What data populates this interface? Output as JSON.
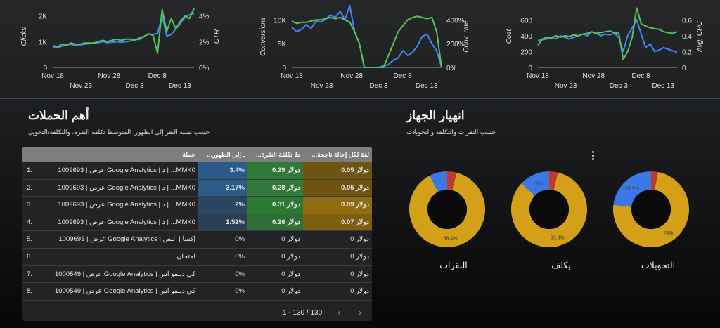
{
  "chart_data": [
    {
      "type": "line",
      "x_ticks_row1": [
        "Nov 18",
        "Nov 28",
        "Dec 8"
      ],
      "x_ticks_row2": [
        "Nov 23",
        "Dec 3",
        "Dec 13"
      ],
      "ylabel": "Clicks",
      "y2label": "CTR",
      "y_ticks": [
        "2K",
        "1K",
        "0"
      ],
      "y2_ticks": [
        "4%",
        "2%",
        "0%"
      ],
      "ylim": [
        0,
        2400
      ],
      "y2lim": [
        0,
        0.048
      ],
      "series": [
        {
          "axis": "left",
          "color": "#4285f4",
          "values": [
            800,
            760,
            820,
            880,
            900,
            860,
            880,
            900,
            920,
            940,
            960,
            1000,
            960,
            980,
            1000,
            980,
            1000,
            1020,
            1100,
            1080,
            1200,
            1300,
            1280,
            1320,
            2000,
            1220,
            1280,
            1500,
            1700,
            1950,
            2050,
            2100
          ]
        },
        {
          "axis": "right",
          "color": "#56c25d",
          "values": [
            0.017,
            0.016,
            0.018,
            0.017,
            0.019,
            0.018,
            0.018,
            0.019,
            0.019,
            0.019,
            0.02,
            0.021,
            0.02,
            0.021,
            0.022,
            0.021,
            0.022,
            0.022,
            0.021,
            0.023,
            0.024,
            0.026,
            0.025,
            0.011,
            0.045,
            0.028,
            0.038,
            0.03,
            0.036,
            0.04,
            0.038,
            0.046
          ]
        }
      ]
    },
    {
      "type": "line",
      "x_ticks_row1": [
        "Nov 18",
        "Nov 28",
        "Dec 8"
      ],
      "x_ticks_row2": [
        "Nov 23",
        "Dec 3",
        "Dec 13"
      ],
      "ylabel": "Conversions",
      "y2label": "Conv. rate",
      "y_ticks": [
        "10K",
        "5K",
        "0"
      ],
      "y2_ticks": [
        "400%",
        "200%",
        "0%"
      ],
      "ylim": [
        0,
        13000
      ],
      "y2lim": [
        0,
        5.2
      ],
      "series": [
        {
          "axis": "left",
          "color": "#4285f4",
          "values": [
            8500,
            7500,
            8000,
            9000,
            8200,
            9800,
            9500,
            10200,
            11000,
            10500,
            11800,
            10000,
            13000,
            7500,
            5000,
            0,
            0,
            0,
            0,
            300,
            600,
            1500,
            2000,
            3500,
            2500,
            3200,
            4500,
            6500,
            7000,
            5000,
            3500,
            0
          ]
        },
        {
          "axis": "right",
          "color": "#56c25d",
          "values": [
            3.9,
            3.7,
            3.8,
            3.8,
            3.9,
            4.0,
            4.0,
            4.1,
            4.2,
            4.1,
            4.2,
            4.0,
            3.8,
            3.0,
            2.0,
            0,
            0,
            0,
            0,
            0,
            1.0,
            2.0,
            3.0,
            3.5,
            4.0,
            4.2,
            4.3,
            4.2,
            4.1,
            4.2,
            3.0,
            0
          ]
        }
      ]
    },
    {
      "type": "line",
      "x_ticks_row1": [
        "Nov 18",
        "Nov 28",
        "Dec 8"
      ],
      "x_ticks_row2": [
        "Nov 23",
        "Dec 3",
        "Dec 13"
      ],
      "ylabel": "Cost",
      "y2label": "Avg. CPC",
      "y_ticks": [
        "600",
        "400",
        "200",
        "0"
      ],
      "y2_ticks": [
        "0.6",
        "0.4",
        "0.2",
        "0"
      ],
      "ylim": [
        0,
        780
      ],
      "y2lim": [
        0,
        0.78
      ],
      "series": [
        {
          "axis": "left",
          "color": "#4285f4",
          "values": [
            340,
            350,
            360,
            380,
            360,
            400,
            380,
            360,
            380,
            400,
            420,
            400,
            450,
            430,
            400,
            420,
            410,
            430,
            380,
            200,
            400,
            500,
            600,
            420,
            250,
            300,
            200,
            220,
            250,
            230,
            210,
            190
          ]
        },
        {
          "axis": "right",
          "color": "#56c25d",
          "values": [
            0.28,
            0.36,
            0.38,
            0.37,
            0.4,
            0.38,
            0.4,
            0.39,
            0.41,
            0.4,
            0.42,
            0.43,
            0.45,
            0.43,
            0.44,
            0.45,
            0.46,
            0.44,
            0.43,
            0.1,
            0.2,
            0.38,
            0.75,
            0.55,
            0.52,
            0.5,
            0.49,
            0.48,
            0.45,
            0.44,
            0.43,
            0.45
          ]
        }
      ]
    },
    {
      "type": "pie",
      "title": "التحويلات",
      "values": [
        74,
        23.1,
        2.9
      ],
      "labels": [
        "74%",
        "23.1%",
        ""
      ],
      "colors": [
        "#d4a017",
        "#3b78e7",
        "#c0392b"
      ]
    },
    {
      "type": "pie",
      "title": "يكلف",
      "values": [
        83.3,
        13,
        3.7
      ],
      "labels": [
        "83.3%",
        "13%",
        ""
      ],
      "colors": [
        "#d4a017",
        "#3b78e7",
        "#c0392b"
      ]
    },
    {
      "type": "pie",
      "title": "النقرات",
      "values": [
        88.4,
        7.6,
        4.0
      ],
      "labels": [
        "88.4%",
        "",
        ""
      ],
      "colors": [
        "#d4a017",
        "#3b78e7",
        "#c0392b"
      ]
    }
  ],
  "campaigns": {
    "title": "أهم الحملات",
    "subtitle": "حسب نسبة النقر إلى الظهور، المتوسط تكلفة النقرة، والتكلفة/التحويل",
    "headers": {
      "campaign": "حملة",
      "ctr": "...ـ إلى الظهور",
      "cpc": "...ط تكلفة النقرة",
      "cost_conv": "...لفة لكل إحالة ناجحة"
    },
    "rows": [
      {
        "idx": "1.",
        "campaign": "MMK0... | د | Google Analytics عرض | 1009693",
        "ctr": "3.4%",
        "cpc": "دولار 0.29",
        "cost_conv": "دولار 0.05",
        "ctr_bg": "#2a5a8a",
        "cpc_bg": "#2f7a37",
        "cc_bg": "#6e5410"
      },
      {
        "idx": "2.",
        "campaign": "MMK0... | د | Google Analytics عرض | 1009693",
        "ctr": "3.17%",
        "cpc": "دولار 0.28",
        "cost_conv": "دولار 0.05",
        "ctr_bg": "#2d5b88",
        "cpc_bg": "#327a3a",
        "cc_bg": "#6e5410"
      },
      {
        "idx": "3.",
        "campaign": "MMK0... | د | Google Analytics عرض | 1009693",
        "ctr": "2%",
        "cpc": "دولار 0.31",
        "cost_conv": "دولار 0.09",
        "ctr_bg": "#2a4660",
        "cpc_bg": "#2c7934",
        "cc_bg": "#8f6c0f"
      },
      {
        "idx": "4.",
        "campaign": "MMK0... | د | Google Analytics عرض | 1009693",
        "ctr": "1.52%",
        "cpc": "دولار 0.26",
        "cost_conv": "دولار 0.07",
        "ctr_bg": "#2b3f52",
        "cpc_bg": "#2e6f35",
        "cc_bg": "#7d5f10"
      },
      {
        "idx": "5.",
        "campaign": "إكسا | النص | Google Analytics عرض | 1009693",
        "ctr": "0%",
        "cpc": "دولار 0",
        "cost_conv": "دولار 0",
        "ctr_bg": "",
        "cpc_bg": "",
        "cc_bg": ""
      },
      {
        "idx": "6.",
        "campaign": "امتحان",
        "ctr": "0%",
        "cpc": "دولار 0",
        "cost_conv": "دولار 0",
        "ctr_bg": "",
        "cpc_bg": "",
        "cc_bg": ""
      },
      {
        "idx": "7.",
        "campaign": "كي ديلفو اس | Google Analytics عرض | 1000549",
        "ctr": "0%",
        "cpc": "دولار 0",
        "cost_conv": "دولار 0",
        "ctr_bg": "",
        "cpc_bg": "",
        "cc_bg": ""
      },
      {
        "idx": "8.",
        "campaign": "كي ديلفو اس | Google Analytics عرض | 1000549",
        "ctr": "0%",
        "cpc": "دولار 0",
        "cost_conv": "دولار 0",
        "ctr_bg": "",
        "cpc_bg": "",
        "cc_bg": ""
      }
    ],
    "pagination": "1 - 130 / 130",
    "prev_icon": "chevron-left-icon",
    "next_icon": "chevron-right-icon"
  },
  "devices": {
    "title": "انهيار الجهاز",
    "subtitle": "حسب النقرات والتكلفة والتحويلات",
    "menu_icon": "more-vert-icon"
  }
}
